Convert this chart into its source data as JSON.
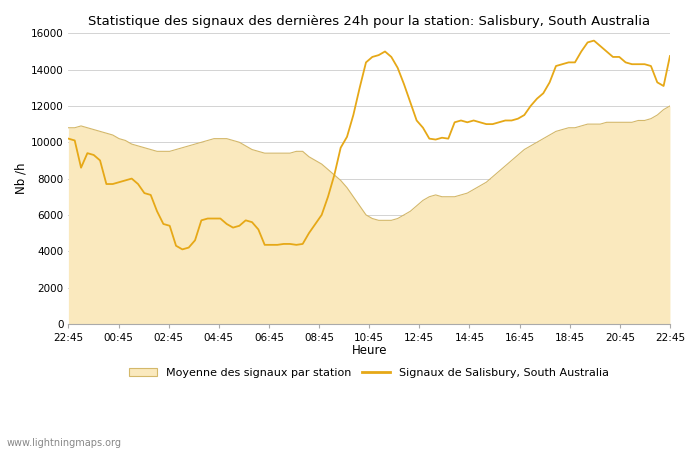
{
  "title": "Statistique des signaux des dernières 24h pour la station: Salisbury, South Australia",
  "xlabel": "Heure",
  "ylabel": "Nb /h",
  "x_ticks": [
    "22:45",
    "00:45",
    "02:45",
    "04:45",
    "06:45",
    "08:45",
    "10:45",
    "12:45",
    "14:45",
    "16:45",
    "18:45",
    "20:45",
    "22:45"
  ],
  "ylim": [
    0,
    16000
  ],
  "yticks": [
    0,
    2000,
    4000,
    6000,
    8000,
    10000,
    12000,
    14000,
    16000
  ],
  "line_color": "#E6A817",
  "fill_color": "#FAE9BE",
  "fill_edge_color": "#D4B86A",
  "background_color": "#FFFFFF",
  "watermark": "www.lightningmaps.org",
  "legend_fill_label": "Moyenne des signaux par station",
  "legend_line_label": "Signaux de Salisbury, South Australia",
  "signal_y": [
    10200,
    10100,
    8600,
    9400,
    9300,
    9000,
    7700,
    7700,
    7800,
    7900,
    8000,
    7700,
    7200,
    7100,
    6200,
    5500,
    5400,
    4300,
    4100,
    4200,
    4600,
    5700,
    5800,
    5800,
    5800,
    5500,
    5300,
    5400,
    5700,
    5600,
    5200,
    4350,
    4350,
    4350,
    4400,
    4400,
    4350,
    4400,
    5000,
    5500,
    6000,
    7000,
    8200,
    9700,
    10300,
    11500,
    13000,
    14400,
    14700,
    14800,
    15000,
    14700,
    14100,
    13200,
    12200,
    11200,
    10800,
    10200,
    10150,
    10250,
    10200,
    11100,
    11200,
    11100,
    11200,
    11100,
    11000,
    11000,
    11100,
    11200,
    11200,
    11300,
    11500,
    12000,
    12400,
    12700,
    13300,
    14200,
    14300,
    14400,
    14400,
    15000,
    15500,
    15600,
    15300,
    15000,
    14700,
    14700,
    14400,
    14300,
    14300,
    14300,
    14200,
    13300,
    13100,
    14750
  ],
  "avg_y": [
    10800,
    10800,
    10900,
    10800,
    10700,
    10600,
    10500,
    10400,
    10200,
    10100,
    9900,
    9800,
    9700,
    9600,
    9500,
    9500,
    9500,
    9600,
    9700,
    9800,
    9900,
    10000,
    10100,
    10200,
    10200,
    10200,
    10100,
    10000,
    9800,
    9600,
    9500,
    9400,
    9400,
    9400,
    9400,
    9400,
    9500,
    9500,
    9200,
    9000,
    8800,
    8500,
    8200,
    7900,
    7500,
    7000,
    6500,
    6000,
    5800,
    5700,
    5700,
    5700,
    5800,
    6000,
    6200,
    6500,
    6800,
    7000,
    7100,
    7000,
    7000,
    7000,
    7100,
    7200,
    7400,
    7600,
    7800,
    8100,
    8400,
    8700,
    9000,
    9300,
    9600,
    9800,
    10000,
    10200,
    10400,
    10600,
    10700,
    10800,
    10800,
    10900,
    11000,
    11000,
    11000,
    11100,
    11100,
    11100,
    11100,
    11100,
    11200,
    11200,
    11300,
    11500,
    11800,
    12000
  ]
}
